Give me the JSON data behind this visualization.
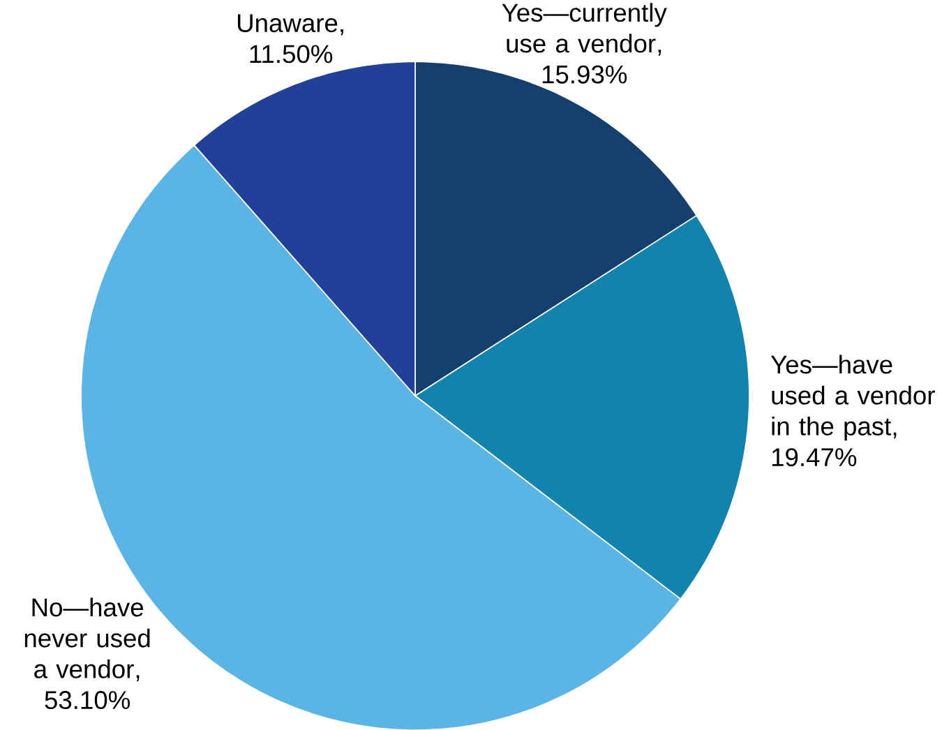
{
  "chart_data": {
    "type": "pie",
    "categories": [
      "Yes—currently use a vendor",
      "Yes—have used a vendor in the past",
      "No—have never used a vendor",
      "Unaware"
    ],
    "values": [
      15.93,
      19.47,
      53.1,
      11.5
    ],
    "value_labels": [
      ", 15.93%",
      ", 19.47%",
      ", 53.10%",
      ", 11.50%"
    ],
    "colors": [
      "#143f6e",
      "#1183ad",
      "#5ab4e4",
      "#21409a"
    ]
  }
}
